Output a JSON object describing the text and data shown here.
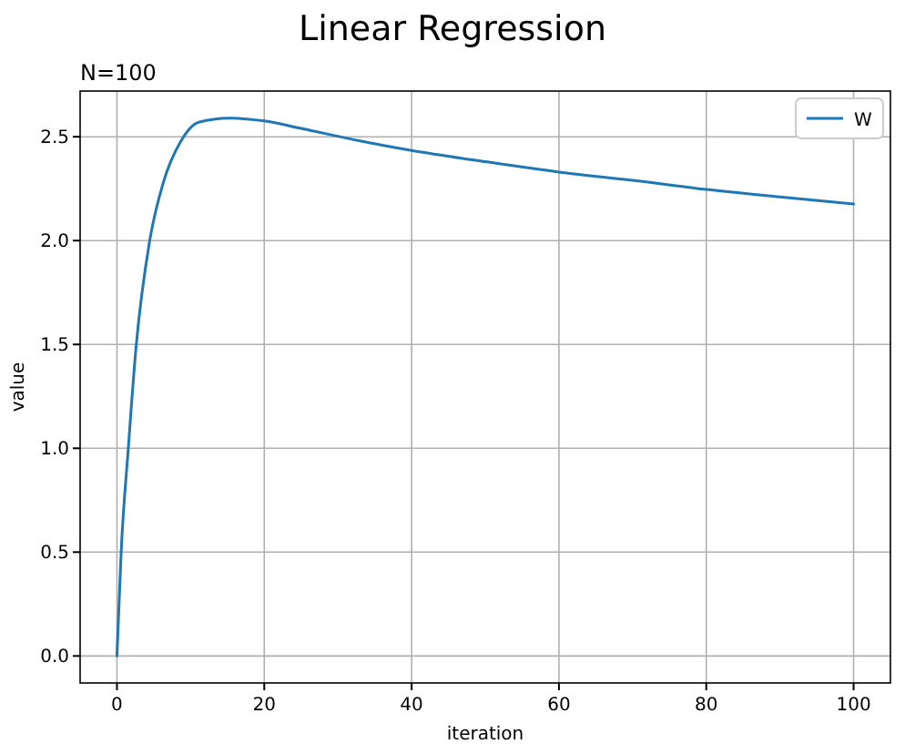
{
  "chart_data": {
    "type": "line",
    "title": "Linear Regression",
    "subtitle": "N=100",
    "xlabel": "iteration",
    "ylabel": "value",
    "series": [
      {
        "name": "W",
        "color": "#1f77b4",
        "x": [
          0,
          0.57,
          1.54,
          2.6,
          4.4,
          6.3,
          8.7,
          11.1,
          15.2,
          20,
          25,
          33,
          40,
          50,
          60,
          70,
          80,
          90,
          100
        ],
        "values": [
          0,
          0.5,
          1.0,
          1.49,
          1.99,
          2.28,
          2.48,
          2.57,
          2.59,
          2.576,
          2.54,
          2.48,
          2.434,
          2.38,
          2.33,
          2.29,
          2.246,
          2.21,
          2.176
        ]
      }
    ],
    "xlim": [
      -5,
      105
    ],
    "xticks": [
      0,
      20,
      40,
      60,
      80,
      100
    ],
    "ylim": [
      -0.13,
      2.72
    ],
    "yticks": [
      {
        "value": 0,
        "label": "0.0"
      },
      {
        "value": 0.5,
        "label": "0.5"
      },
      {
        "value": 1,
        "label": "1.0"
      },
      {
        "value": 1.5,
        "label": "1.5"
      },
      {
        "value": 2,
        "label": "2.0"
      },
      {
        "value": 2.5,
        "label": "2.5"
      }
    ],
    "grid": true,
    "legend": "top right"
  }
}
